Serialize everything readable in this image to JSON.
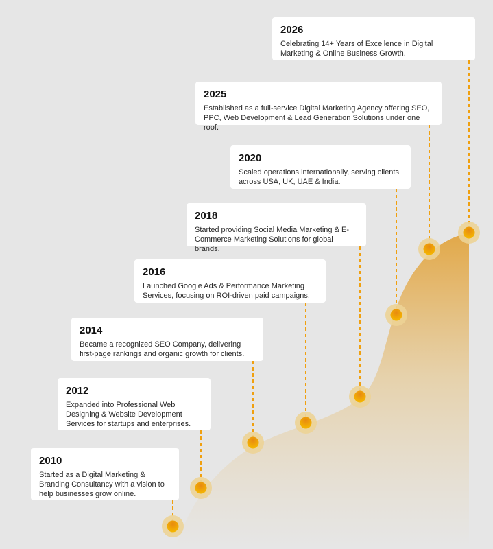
{
  "colors": {
    "accent": "#f0a010",
    "halo": "#ecd396",
    "area_top": "#e2a848",
    "background": "#e6e6e6"
  },
  "milestones": [
    {
      "year": "2010",
      "text": "Started as a Digital Marketing & Branding Consultancy with a vision to help businesses grow online."
    },
    {
      "year": "2012",
      "text": "Expanded into Professional Web Designing & Website Development Services for startups and enterprises."
    },
    {
      "year": "2014",
      "text": "Became a recognized SEO Company, delivering first-page rankings and organic growth for clients."
    },
    {
      "year": "2016",
      "text": "Launched Google Ads & Performance Marketing Services, focusing on ROI-driven paid campaigns."
    },
    {
      "year": "2018",
      "text": "Started providing Social Media Marketing & E-Commerce Marketing Solutions for global brands."
    },
    {
      "year": "2020",
      "text": "Scaled operations internationally, serving clients across USA, UK, UAE & India."
    },
    {
      "year": "2025",
      "text": "Established as a full-service Digital Marketing Agency offering SEO, PPC, Web Development & Lead Generation Solutions under one roof."
    },
    {
      "year": "2026",
      "text": "Celebrating 14+ Years of Excellence in Digital Marketing & Online Business Growth."
    }
  ]
}
